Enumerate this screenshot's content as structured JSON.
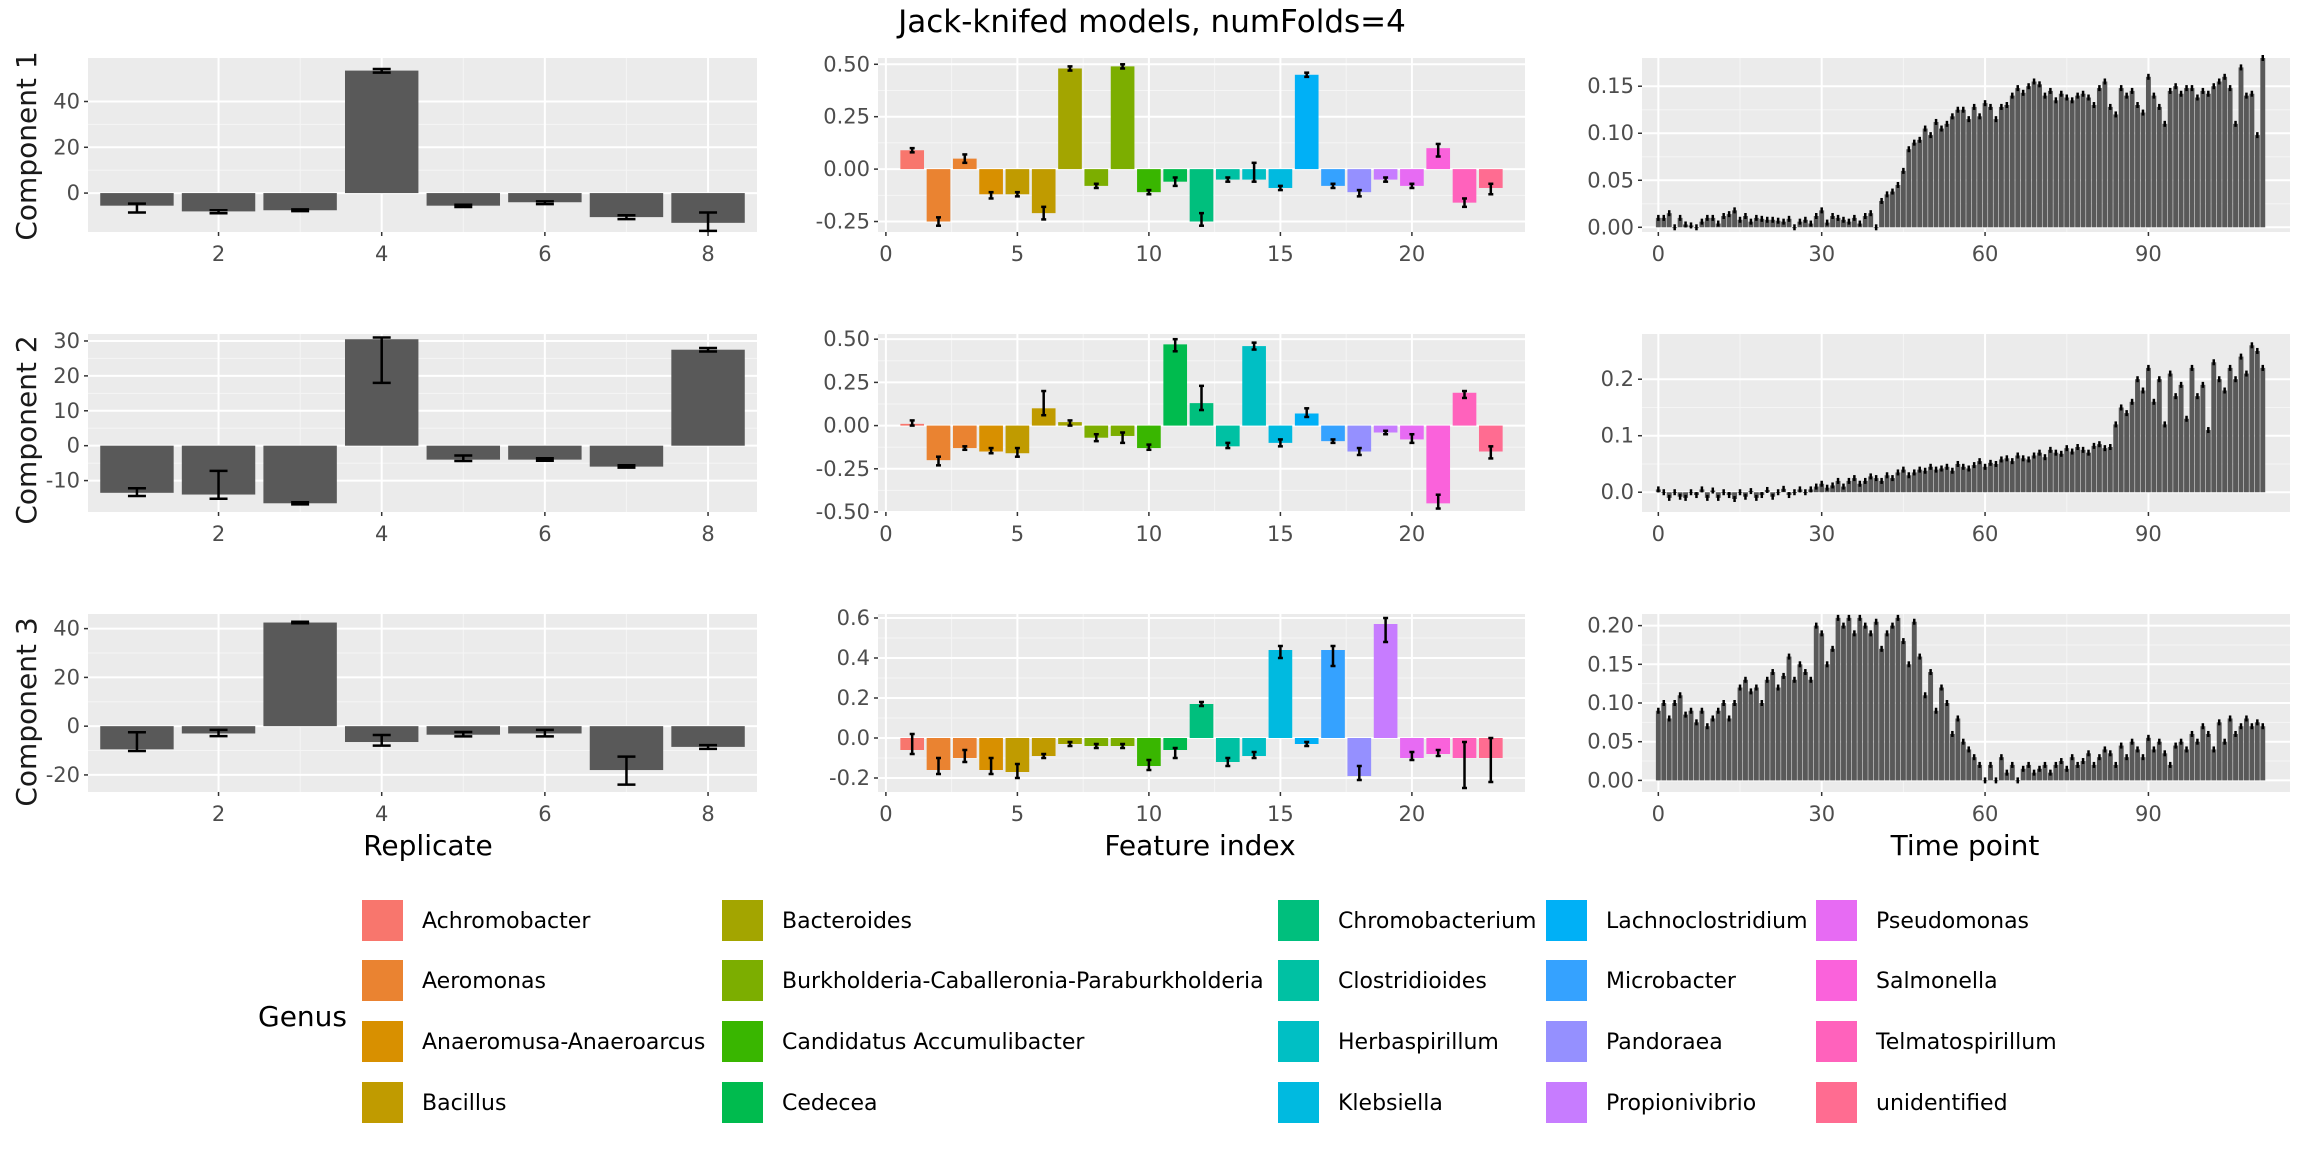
{
  "title": "Jack-knifed models, numFolds=4",
  "x_labels": [
    "Replicate",
    "Feature index",
    "Time point"
  ],
  "component_labels": [
    "Component 1",
    "Component 2",
    "Component 3"
  ],
  "legend": {
    "title": "Genus",
    "items": [
      {
        "name": "Achromobacter",
        "color": "#F8766D"
      },
      {
        "name": "Aeromonas",
        "color": "#EA8331"
      },
      {
        "name": "Anaeromusa-Anaeroarcus",
        "color": "#D89000"
      },
      {
        "name": "Bacillus",
        "color": "#C09B00"
      },
      {
        "name": "Bacteroides",
        "color": "#A3A500"
      },
      {
        "name": "Burkholderia-Caballeronia-Paraburkholderia",
        "color": "#7CAE00"
      },
      {
        "name": "Candidatus Accumulibacter",
        "color": "#39B600"
      },
      {
        "name": "Cedecea",
        "color": "#00BB4E"
      },
      {
        "name": "Chromobacterium",
        "color": "#00BF7D"
      },
      {
        "name": "Clostridioides",
        "color": "#00C1A3"
      },
      {
        "name": "Herbaspirillum",
        "color": "#00BFC4"
      },
      {
        "name": "Klebsiella",
        "color": "#00BAE0"
      },
      {
        "name": "Lachnoclostridium",
        "color": "#00B0F6"
      },
      {
        "name": "Microbacter",
        "color": "#35A2FF"
      },
      {
        "name": "Pandoraea",
        "color": "#9590FF"
      },
      {
        "name": "Propionivibrio",
        "color": "#C77CFF"
      },
      {
        "name": "Pseudomonas",
        "color": "#E76BF3"
      },
      {
        "name": "Salmonella",
        "color": "#FA62DB"
      },
      {
        "name": "Telmatospirillum",
        "color": "#FF62BC"
      },
      {
        "name": "unidentified",
        "color": "#FF6C91"
      }
    ]
  },
  "feature_genus_index": [
    0,
    1,
    1,
    2,
    3,
    3,
    4,
    5,
    5,
    6,
    7,
    8,
    9,
    10,
    11,
    12,
    13,
    14,
    15,
    16,
    17,
    18,
    19
  ],
  "chart_data": [
    {
      "type": "bar",
      "panel": "replicate",
      "component": 1,
      "x": [
        1,
        2,
        3,
        4,
        5,
        6,
        7,
        8
      ],
      "values": [
        -5.5,
        -8,
        -7.5,
        53.5,
        -5.5,
        -4,
        -10.5,
        -13
      ],
      "err_low": [
        -8.5,
        -8.8,
        -7.9,
        52.6,
        -6.1,
        -4.8,
        -11.4,
        -16.5
      ],
      "err_high": [
        -4.6,
        -7.5,
        -7.1,
        54.2,
        -5.1,
        -3.6,
        -9.7,
        -8.5
      ],
      "xticks": [
        2,
        4,
        6,
        8
      ],
      "yticks": [
        0,
        20,
        40
      ],
      "ylim": [
        -17,
        59
      ],
      "xlim": [
        0.4,
        8.6
      ]
    },
    {
      "type": "bar",
      "panel": "features",
      "component": 1,
      "x": [
        1,
        2,
        3,
        4,
        5,
        6,
        7,
        8,
        9,
        10,
        11,
        12,
        13,
        14,
        15,
        16,
        17,
        18,
        19,
        20,
        21,
        22,
        23
      ],
      "values": [
        0.09,
        -0.25,
        0.05,
        -0.12,
        -0.12,
        -0.21,
        0.48,
        -0.08,
        0.49,
        -0.11,
        -0.06,
        -0.25,
        -0.05,
        -0.05,
        -0.09,
        0.45,
        -0.08,
        -0.11,
        -0.05,
        -0.08,
        0.1,
        -0.16,
        -0.09
      ],
      "err_low": [
        0.08,
        -0.27,
        0.03,
        -0.14,
        -0.13,
        -0.24,
        0.47,
        -0.09,
        0.48,
        -0.12,
        -0.08,
        -0.27,
        -0.06,
        -0.06,
        -0.1,
        0.44,
        -0.09,
        -0.13,
        -0.06,
        -0.09,
        0.06,
        -0.18,
        -0.12
      ],
      "err_high": [
        0.1,
        -0.23,
        0.07,
        -0.11,
        -0.11,
        -0.18,
        0.49,
        -0.07,
        0.5,
        -0.1,
        -0.04,
        -0.21,
        -0.04,
        0.03,
        -0.08,
        0.46,
        -0.07,
        -0.1,
        -0.04,
        -0.07,
        0.12,
        -0.14,
        -0.07
      ],
      "xticks": [
        0,
        5,
        10,
        15,
        20
      ],
      "yticks": [
        -0.25,
        0,
        0.25,
        0.5
      ],
      "ylim": [
        -0.3,
        0.53
      ],
      "xlim": [
        -0.3,
        24.3
      ]
    },
    {
      "type": "bar",
      "panel": "time",
      "component": 1,
      "values": [
        0.01,
        0.01,
        0.015,
        0.0,
        0.01,
        0.003,
        0.002,
        0.0,
        0.006,
        0.01,
        0.01,
        0.004,
        0.012,
        0.014,
        0.018,
        0.008,
        0.012,
        0.006,
        0.01,
        0.009,
        0.008,
        0.008,
        0.007,
        0.006,
        0.009,
        0.0,
        0.006,
        0.008,
        0.004,
        0.012,
        0.018,
        0.005,
        0.012,
        0.01,
        0.008,
        0.006,
        0.01,
        0.004,
        0.012,
        0.015,
        0.0,
        0.028,
        0.035,
        0.038,
        0.045,
        0.06,
        0.083,
        0.09,
        0.093,
        0.105,
        0.098,
        0.112,
        0.105,
        0.11,
        0.118,
        0.125,
        0.125,
        0.115,
        0.128,
        0.118,
        0.132,
        0.128,
        0.115,
        0.128,
        0.13,
        0.14,
        0.148,
        0.143,
        0.15,
        0.155,
        0.152,
        0.14,
        0.145,
        0.135,
        0.142,
        0.138,
        0.135,
        0.14,
        0.142,
        0.138,
        0.13,
        0.148,
        0.155,
        0.128,
        0.12,
        0.148,
        0.14,
        0.145,
        0.13,
        0.122,
        0.16,
        0.14,
        0.128,
        0.11,
        0.145,
        0.15,
        0.142,
        0.148,
        0.148,
        0.138,
        0.145,
        0.142,
        0.15,
        0.155,
        0.16,
        0.148,
        0.11,
        0.17,
        0.14,
        0.142,
        0.098,
        0.18
      ],
      "xticks": [
        0,
        30,
        60,
        90
      ],
      "yticks": [
        0,
        0.05,
        0.1,
        0.15
      ],
      "ylim": [
        -0.005,
        0.18
      ],
      "xlim": [
        -3,
        116
      ]
    },
    {
      "type": "bar",
      "panel": "replicate",
      "component": 2,
      "x": [
        1,
        2,
        3,
        4,
        5,
        6,
        7,
        8
      ],
      "values": [
        -13.5,
        -14,
        -16.5,
        30.5,
        -4,
        -4,
        -6,
        27.5
      ],
      "err_low": [
        -14.4,
        -15.2,
        -16.8,
        18.0,
        -4.4,
        -4.3,
        -6.3,
        27.0
      ],
      "err_high": [
        -12.2,
        -7.2,
        -16.2,
        31.0,
        -2.8,
        -3.6,
        -5.6,
        28.0
      ],
      "xticks": [
        2,
        4,
        6,
        8
      ],
      "yticks": [
        -10,
        0,
        10,
        20,
        30
      ],
      "ylim": [
        -19,
        32
      ],
      "xlim": [
        0.4,
        8.6
      ]
    },
    {
      "type": "bar",
      "panel": "features",
      "component": 2,
      "x": [
        1,
        2,
        3,
        4,
        5,
        6,
        7,
        8,
        9,
        10,
        11,
        12,
        13,
        14,
        15,
        16,
        17,
        18,
        19,
        20,
        21,
        22,
        23
      ],
      "values": [
        0.01,
        -0.2,
        -0.13,
        -0.15,
        -0.16,
        0.1,
        0.02,
        -0.07,
        -0.06,
        -0.13,
        0.47,
        0.13,
        -0.12,
        0.46,
        -0.1,
        0.07,
        -0.09,
        -0.15,
        -0.04,
        -0.08,
        -0.45,
        0.19,
        -0.15
      ],
      "err_low": [
        0.0,
        -0.23,
        -0.14,
        -0.16,
        -0.18,
        0.06,
        0.0,
        -0.09,
        -0.1,
        -0.14,
        0.43,
        0.09,
        -0.13,
        0.44,
        -0.12,
        0.05,
        -0.1,
        -0.17,
        -0.05,
        -0.1,
        -0.48,
        0.16,
        -0.19
      ],
      "err_high": [
        0.03,
        -0.18,
        -0.12,
        -0.13,
        -0.13,
        0.2,
        0.03,
        -0.05,
        -0.04,
        -0.11,
        0.5,
        0.23,
        -0.1,
        0.48,
        -0.08,
        0.1,
        -0.08,
        -0.13,
        -0.03,
        -0.05,
        -0.4,
        0.2,
        -0.12
      ],
      "xticks": [
        0,
        5,
        10,
        15,
        20
      ],
      "yticks": [
        -0.5,
        -0.25,
        0,
        0.25,
        0.5
      ],
      "ylim": [
        -0.5,
        0.53
      ],
      "xlim": [
        -0.3,
        24.3
      ]
    },
    {
      "type": "bar",
      "panel": "time",
      "component": 2,
      "values": [
        0.005,
        0.0,
        -0.01,
        0.0,
        -0.008,
        -0.01,
        0.0,
        -0.005,
        0.005,
        -0.01,
        0.003,
        -0.01,
        0.0,
        -0.005,
        -0.012,
        0.0,
        -0.008,
        0.002,
        -0.01,
        -0.005,
        0.004,
        -0.008,
        0.0,
        0.006,
        -0.005,
        0.0,
        0.005,
        0.0,
        0.005,
        0.01,
        0.015,
        0.008,
        0.012,
        0.02,
        0.01,
        0.02,
        0.025,
        0.015,
        0.02,
        0.028,
        0.025,
        0.02,
        0.03,
        0.025,
        0.035,
        0.04,
        0.03,
        0.035,
        0.04,
        0.038,
        0.045,
        0.04,
        0.042,
        0.045,
        0.038,
        0.05,
        0.045,
        0.042,
        0.048,
        0.055,
        0.045,
        0.052,
        0.05,
        0.058,
        0.06,
        0.055,
        0.065,
        0.06,
        0.058,
        0.065,
        0.07,
        0.062,
        0.075,
        0.07,
        0.068,
        0.078,
        0.072,
        0.08,
        0.075,
        0.07,
        0.082,
        0.085,
        0.078,
        0.08,
        0.12,
        0.15,
        0.14,
        0.16,
        0.2,
        0.18,
        0.22,
        0.16,
        0.2,
        0.12,
        0.21,
        0.17,
        0.19,
        0.13,
        0.22,
        0.17,
        0.19,
        0.11,
        0.23,
        0.2,
        0.18,
        0.22,
        0.2,
        0.24,
        0.21,
        0.26,
        0.25,
        0.22
      ],
      "xticks": [
        0,
        30,
        60,
        90
      ],
      "yticks": [
        0,
        0.1,
        0.2
      ],
      "ylim": [
        -0.035,
        0.28
      ],
      "xlim": [
        -3,
        116
      ]
    },
    {
      "type": "bar",
      "panel": "replicate",
      "component": 3,
      "x": [
        1,
        2,
        3,
        4,
        5,
        6,
        7,
        8
      ],
      "values": [
        -9.5,
        -3,
        42.5,
        -6.5,
        -3.5,
        -3,
        -18,
        -8.5
      ],
      "err_low": [
        -10.2,
        -4.1,
        42.2,
        -8.0,
        -4.2,
        -4.2,
        -24,
        -9.3
      ],
      "err_high": [
        -2.5,
        -1.5,
        42.8,
        -3.6,
        -2.4,
        -1.5,
        -12.5,
        -7.8
      ],
      "xticks": [
        2,
        4,
        6,
        8
      ],
      "yticks": [
        -20,
        0,
        20,
        40
      ],
      "ylim": [
        -27,
        46
      ],
      "xlim": [
        0.4,
        8.6
      ]
    },
    {
      "type": "bar",
      "panel": "features",
      "component": 3,
      "x": [
        1,
        2,
        3,
        4,
        5,
        6,
        7,
        8,
        9,
        10,
        11,
        12,
        13,
        14,
        15,
        16,
        17,
        18,
        19,
        20,
        21,
        22,
        23
      ],
      "values": [
        -0.06,
        -0.16,
        -0.1,
        -0.16,
        -0.17,
        -0.09,
        -0.03,
        -0.04,
        -0.04,
        -0.14,
        -0.06,
        0.17,
        -0.12,
        -0.09,
        0.44,
        -0.03,
        0.44,
        -0.19,
        0.57,
        -0.1,
        -0.08,
        -0.1,
        -0.1
      ],
      "err_low": [
        -0.08,
        -0.18,
        -0.12,
        -0.18,
        -0.2,
        -0.1,
        -0.04,
        -0.05,
        -0.05,
        -0.16,
        -0.1,
        0.16,
        -0.14,
        -0.1,
        0.4,
        -0.04,
        0.36,
        -0.21,
        0.48,
        -0.11,
        -0.09,
        -0.25,
        -0.22
      ],
      "err_high": [
        0.02,
        -0.1,
        -0.06,
        -0.1,
        -0.13,
        -0.08,
        -0.02,
        -0.03,
        -0.03,
        -0.11,
        -0.05,
        0.18,
        -0.1,
        -0.07,
        0.46,
        -0.02,
        0.46,
        -0.14,
        0.6,
        -0.07,
        -0.06,
        -0.02,
        0.0
      ],
      "xticks": [
        0,
        5,
        10,
        15,
        20
      ],
      "yticks": [
        -0.2,
        0,
        0.2,
        0.4,
        0.6
      ],
      "ylim": [
        -0.27,
        0.62
      ],
      "xlim": [
        -0.3,
        24.3
      ]
    },
    {
      "type": "bar",
      "panel": "time",
      "component": 3,
      "values": [
        0.09,
        0.1,
        0.08,
        0.1,
        0.11,
        0.085,
        0.09,
        0.075,
        0.09,
        0.07,
        0.08,
        0.09,
        0.1,
        0.08,
        0.1,
        0.12,
        0.13,
        0.115,
        0.12,
        0.1,
        0.13,
        0.14,
        0.12,
        0.135,
        0.16,
        0.13,
        0.15,
        0.14,
        0.13,
        0.2,
        0.19,
        0.15,
        0.17,
        0.21,
        0.2,
        0.21,
        0.19,
        0.21,
        0.2,
        0.19,
        0.205,
        0.17,
        0.19,
        0.2,
        0.21,
        0.18,
        0.15,
        0.205,
        0.16,
        0.11,
        0.14,
        0.09,
        0.12,
        0.1,
        0.06,
        0.08,
        0.05,
        0.04,
        0.03,
        0.02,
        0.0,
        0.02,
        0.0,
        0.03,
        0.01,
        0.02,
        0.0,
        0.015,
        0.02,
        0.01,
        0.015,
        0.02,
        0.01,
        0.02,
        0.025,
        0.015,
        0.03,
        0.02,
        0.025,
        0.035,
        0.02,
        0.03,
        0.04,
        0.035,
        0.02,
        0.045,
        0.03,
        0.05,
        0.04,
        0.03,
        0.055,
        0.04,
        0.05,
        0.035,
        0.02,
        0.045,
        0.05,
        0.04,
        0.06,
        0.05,
        0.07,
        0.06,
        0.04,
        0.075,
        0.05,
        0.08,
        0.06,
        0.07,
        0.08,
        0.07,
        0.075,
        0.07
      ],
      "xticks": [
        0,
        30,
        60,
        90
      ],
      "yticks": [
        0,
        0.05,
        0.1,
        0.15,
        0.2
      ],
      "ylim": [
        -0.015,
        0.215
      ],
      "xlim": [
        -3,
        116
      ]
    }
  ]
}
